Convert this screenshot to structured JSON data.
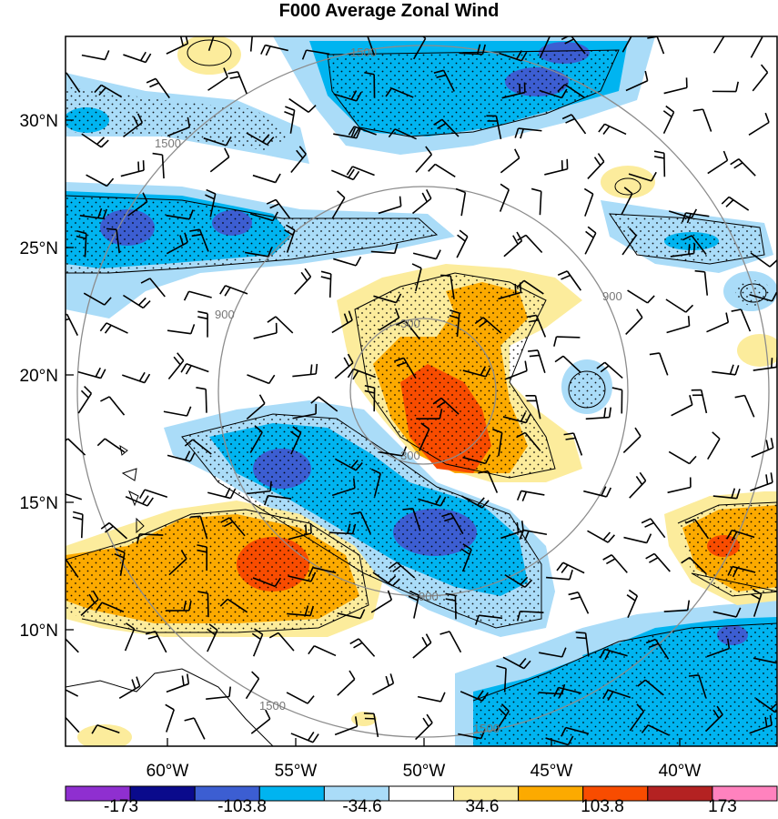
{
  "title": "F000 Average Zonal Wind",
  "map": {
    "lat_labels": [
      "30°N",
      "25°N",
      "20°N",
      "15°N",
      "10°N"
    ],
    "lon_labels": [
      "60°W",
      "55°W",
      "50°W",
      "45°W",
      "40°W"
    ],
    "range_ring_labels": [
      "300",
      "900",
      "1500"
    ],
    "colorbar": {
      "colors": [
        "#8f2fd0",
        "#0a0a8c",
        "#3c5ed2",
        "#00b4f0",
        "#aadcf8",
        "#ffffff",
        "#fcec9c",
        "#fcaa00",
        "#f84c00",
        "#b42222",
        "#ff82be"
      ],
      "labels": [
        "-173",
        "-103.8",
        "-34.6",
        "34.6",
        "103.8",
        "173"
      ]
    }
  }
}
